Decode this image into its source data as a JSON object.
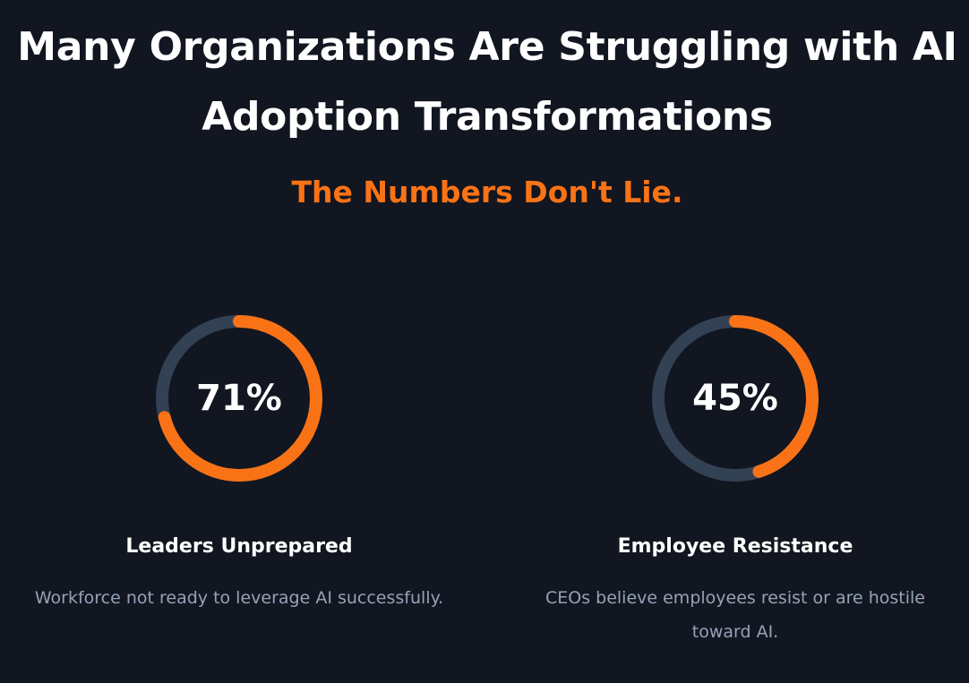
{
  "heading": {
    "title": "Many Organizations Are Struggling with AI Adoption Transformations",
    "subtitle": "The Numbers Don't Lie."
  },
  "colors": {
    "background": "#121620",
    "accent": "#f97316",
    "track": "#334155",
    "muted_text": "#94a3b8"
  },
  "stats": [
    {
      "value_text": "71%",
      "percent": 71,
      "label": "Leaders Unprepared",
      "description": "Workforce not ready to leverage AI successfully."
    },
    {
      "value_text": "45%",
      "percent": 45,
      "label": "Employee Resistance",
      "description": "CEOs believe employees resist or are hostile toward AI."
    }
  ]
}
